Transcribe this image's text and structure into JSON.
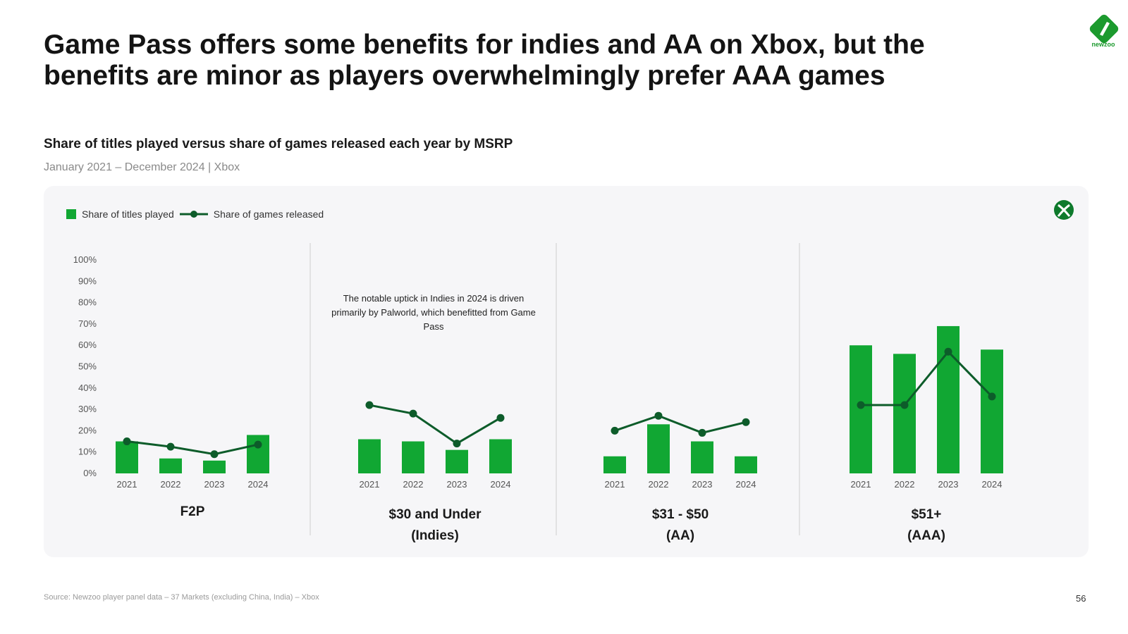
{
  "title": "Game Pass offers some benefits for indies and AA on Xbox, but the benefits are minor as players overwhelmingly prefer AAA games",
  "brand": {
    "logo_text": "newzoo",
    "color": "#1c9a2e"
  },
  "platform_icon": "xbox-icon",
  "note": "The notable uptick in Indies in 2024 is driven primarily by Palworld, which benefitted from Game Pass",
  "footer": {
    "source": "Source: Newzoo player panel data – 37 Markets (excluding China, India) – Xbox",
    "page_number": "56"
  },
  "chart_data": {
    "type": "bar",
    "title": "Share of titles played versus share of games released each year by MSRP",
    "subtitle": "January 2021 – December 2024 | Xbox",
    "ylim": [
      0,
      100
    ],
    "yticks": [
      "0%",
      "10%",
      "20%",
      "30%",
      "40%",
      "50%",
      "60%",
      "70%",
      "80%",
      "90%",
      "100%"
    ],
    "grid": false,
    "legend_placement": "top-left",
    "colors": {
      "bars": "#11a733",
      "line": "#0d5c2a"
    },
    "legend": [
      {
        "name": "Share of titles played",
        "kind": "bar"
      },
      {
        "name": "Share of games released",
        "kind": "line"
      }
    ],
    "categories": [
      "2021",
      "2022",
      "2023",
      "2024"
    ],
    "groups": [
      {
        "label": "F2P",
        "sublabel": "",
        "bars": [
          15,
          7,
          6,
          18
        ],
        "line": [
          15,
          12.5,
          9,
          13.5
        ]
      },
      {
        "label": "$30 and Under",
        "sublabel": "(Indies)",
        "bars": [
          16,
          15,
          11,
          16
        ],
        "line": [
          32,
          28,
          14,
          26
        ]
      },
      {
        "label": "$31 - $50",
        "sublabel": "(AA)",
        "bars": [
          8,
          23,
          15,
          8
        ],
        "line": [
          20,
          27,
          19,
          24
        ]
      },
      {
        "label": "$51+",
        "sublabel": "(AAA)",
        "bars": [
          60,
          56,
          69,
          58
        ],
        "line": [
          32,
          32,
          57,
          36
        ]
      }
    ]
  }
}
